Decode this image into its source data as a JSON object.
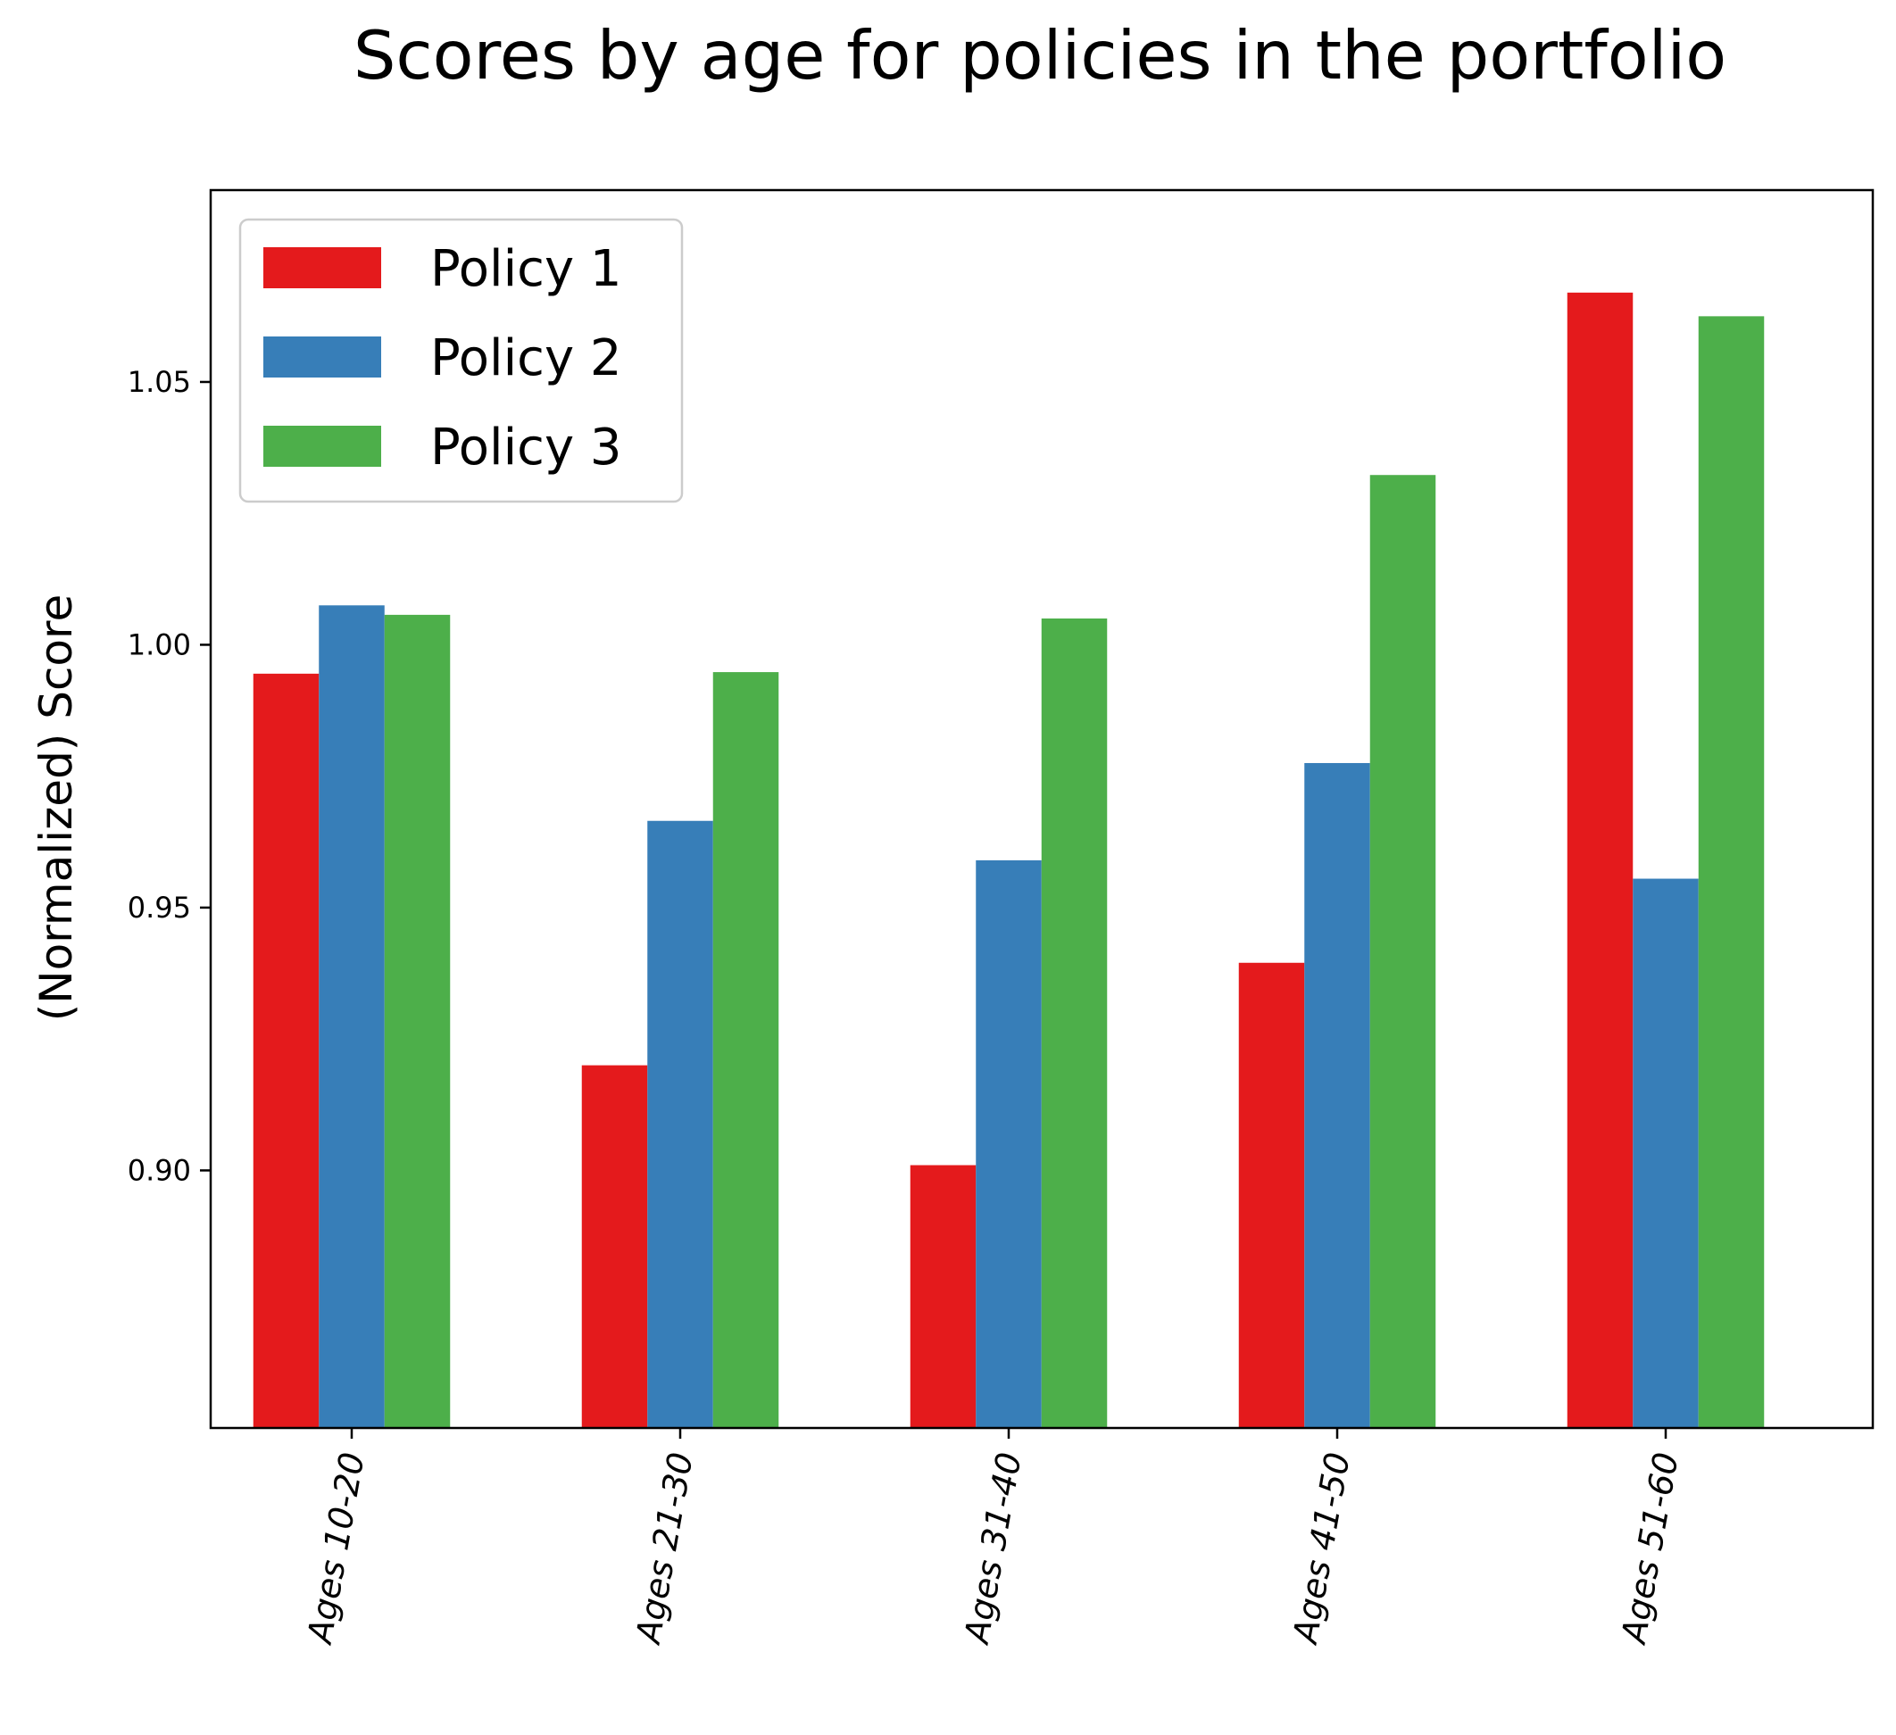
{
  "chart_data": {
    "type": "bar",
    "title": "Scores by age for policies in the portfolio",
    "xlabel": "",
    "ylabel": "(Normalized) Score",
    "categories": [
      "Ages 10-20",
      "Ages 21-30",
      "Ages 31-40",
      "Ages 41-50",
      "Ages 51-60"
    ],
    "series": [
      {
        "name": "Policy 1",
        "color": "#e41a1c",
        "values": [
          0.9945,
          0.92,
          0.901,
          0.9395,
          1.067
        ]
      },
      {
        "name": "Policy 2",
        "color": "#377eb8",
        "values": [
          1.0075,
          0.9665,
          0.959,
          0.9775,
          0.9555
        ]
      },
      {
        "name": "Policy 3",
        "color": "#4daf4a",
        "values": [
          1.0057,
          0.9948,
          1.005,
          1.0323,
          1.0625
        ]
      }
    ],
    "ylim": [
      0.851,
      1.0865
    ],
    "yticks": [
      "0.90",
      "0.95",
      "1.00",
      "1.05"
    ],
    "ytick_values": [
      0.9,
      0.95,
      1.0,
      1.05
    ],
    "xtick_rotation": "rotated ~80 degrees, italic",
    "grid": false,
    "legend_position": "top-left"
  }
}
